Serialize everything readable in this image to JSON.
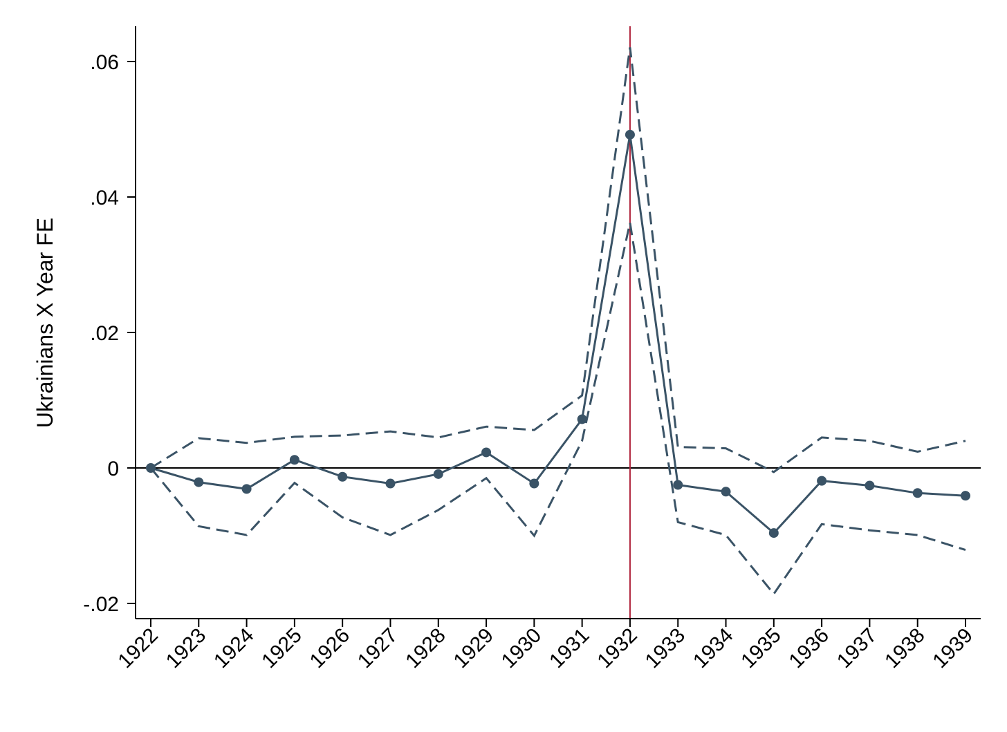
{
  "chart_data": {
    "type": "line",
    "title": "",
    "xlabel": "",
    "ylabel": "Ukrainians X Year FE",
    "x": [
      1922,
      1923,
      1924,
      1925,
      1926,
      1927,
      1928,
      1929,
      1930,
      1931,
      1932,
      1933,
      1934,
      1935,
      1936,
      1937,
      1938,
      1939
    ],
    "x_tick_labels": [
      "1922",
      "1923",
      "1924",
      "1925",
      "1926",
      "1927",
      "1928",
      "1929",
      "1930",
      "1931",
      "1932",
      "1933",
      "1934",
      "1935",
      "1936",
      "1937",
      "1938",
      "1939"
    ],
    "ylim": [
      -0.022,
      0.0655
    ],
    "y_ticks": [
      -0.02,
      0,
      0.02,
      0.04,
      0.06
    ],
    "y_tick_labels": [
      "-.02",
      "0",
      ".02",
      ".04",
      ".06"
    ],
    "grid": false,
    "series": [
      {
        "role": "estimate",
        "style": "solid-with-markers",
        "values": [
          0,
          -0.0021,
          -0.0031,
          0.0012,
          -0.0013,
          -0.0023,
          -0.0009,
          0.0023,
          -0.0023,
          0.0072,
          0.0492,
          -0.0025,
          -0.0035,
          -0.0096,
          -0.0019,
          -0.0026,
          -0.0037,
          -0.0041
        ]
      },
      {
        "role": "upper-ci",
        "style": "dashed",
        "values": [
          0,
          0.0044,
          0.0037,
          0.0046,
          0.0048,
          0.0054,
          0.0045,
          0.0061,
          0.0056,
          0.0107,
          0.0621,
          0.0031,
          0.0029,
          -0.0006,
          0.0045,
          0.004,
          0.0024,
          0.004
        ]
      },
      {
        "role": "lower-ci",
        "style": "dashed",
        "values": [
          0,
          -0.0086,
          -0.0099,
          -0.0022,
          -0.0073,
          -0.0099,
          -0.0062,
          -0.0015,
          -0.01,
          0.004,
          0.0362,
          -0.008,
          -0.0099,
          -0.0186,
          -0.0083,
          -0.0092,
          -0.0099,
          -0.0121
        ]
      }
    ],
    "reference_lines": {
      "horizontal_y": 0,
      "vertical_x": 1932
    },
    "colors": {
      "series": "#3a5366",
      "vertical_line": "#b0243c",
      "zero_line": "#000000",
      "axis": "#000000"
    }
  }
}
